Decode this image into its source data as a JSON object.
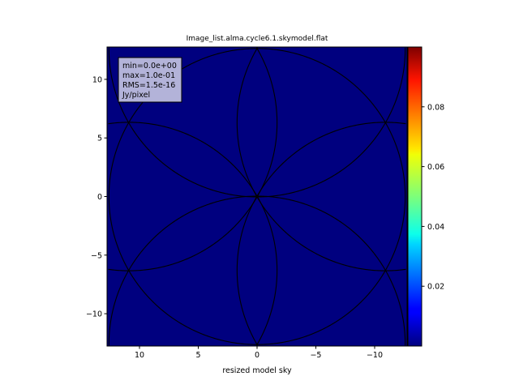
{
  "chart_data": {
    "type": "heatmap",
    "title": "Image_list.alma.cycle6.1.skymodel.flat",
    "xlabel": "resized model sky",
    "ylabel": "",
    "xlim": [
      12.76,
      -12.76
    ],
    "ylim": [
      -12.76,
      12.76
    ],
    "xticks": [
      10,
      5,
      0,
      -5,
      -10
    ],
    "xtick_labels": [
      "10",
      "5",
      "0",
      "−5",
      "−10"
    ],
    "yticks": [
      10,
      5,
      0,
      -5,
      -10
    ],
    "ytick_labels": [
      "10",
      "5",
      "0",
      "−5",
      "−10"
    ],
    "colormap": "jet",
    "background_color": "#00007f",
    "colorbar": {
      "range": [
        0,
        0.1
      ],
      "ticks": [
        0.02,
        0.04,
        0.06,
        0.08
      ],
      "tick_labels": [
        "0.02",
        "0.04",
        "0.06",
        "0.08"
      ]
    },
    "contour_circles": {
      "radius": 12.6,
      "centers": [
        [
          0,
          0
        ],
        [
          0,
          12.6
        ],
        [
          0,
          -12.6
        ],
        [
          10.9,
          6.3
        ],
        [
          -10.9,
          6.3
        ],
        [
          10.9,
          -6.3
        ],
        [
          -10.9,
          -6.3
        ]
      ],
      "color": "#000000"
    },
    "stats_box": {
      "lines": [
        "min=0.0e+00",
        "max=1.0e-01",
        "RMS=1.5e-16",
        "Jy/pixel"
      ],
      "background": "#b3b3d9"
    },
    "grid": false
  }
}
